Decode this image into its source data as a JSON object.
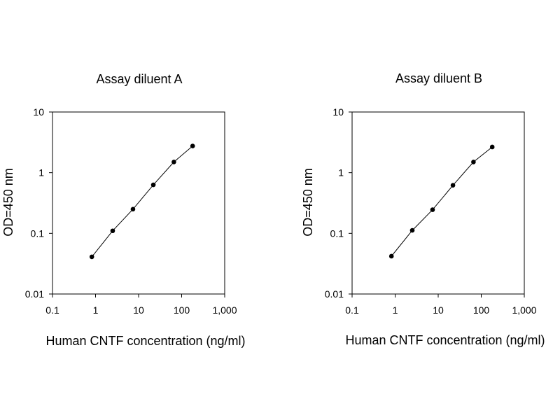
{
  "chart_data": [
    {
      "type": "line",
      "title": "Assay diluent A",
      "xlabel": "Human CNTF concentration (ng/ml)",
      "ylabel": "OD=450 nm",
      "xscale": "log",
      "yscale": "log",
      "xlim": [
        0.1,
        1000
      ],
      "ylim": [
        0.01,
        10
      ],
      "x_ticks": [
        0.1,
        1,
        10,
        100,
        1000
      ],
      "x_tick_labels": [
        "0.1",
        "1",
        "10",
        "100",
        "1,000"
      ],
      "y_ticks": [
        0.01,
        0.1,
        1,
        10
      ],
      "y_tick_labels": [
        "0.01",
        "0.1",
        "1",
        "10"
      ],
      "grid": false,
      "series": [
        {
          "x": [
            0.82,
            2.5,
            7.4,
            22,
            66,
            180
          ],
          "y": [
            0.041,
            0.11,
            0.25,
            0.63,
            1.5,
            2.75
          ]
        }
      ]
    },
    {
      "type": "line",
      "title": "Assay diluent B",
      "xlabel": "Human CNTF concentration (ng/ml)",
      "ylabel": "OD=450 nm",
      "xscale": "log",
      "yscale": "log",
      "xlim": [
        0.1,
        1000
      ],
      "ylim": [
        0.01,
        10
      ],
      "x_ticks": [
        0.1,
        1,
        10,
        100,
        1000
      ],
      "x_tick_labels": [
        "0.1",
        "1",
        "10",
        "100",
        "1,000"
      ],
      "y_ticks": [
        0.01,
        0.1,
        1,
        10
      ],
      "y_tick_labels": [
        "0.01",
        "0.1",
        "1",
        "10"
      ],
      "grid": false,
      "series": [
        {
          "x": [
            0.82,
            2.5,
            7.4,
            22,
            66,
            180
          ],
          "y": [
            0.042,
            0.112,
            0.245,
            0.62,
            1.5,
            2.65
          ]
        }
      ]
    }
  ]
}
